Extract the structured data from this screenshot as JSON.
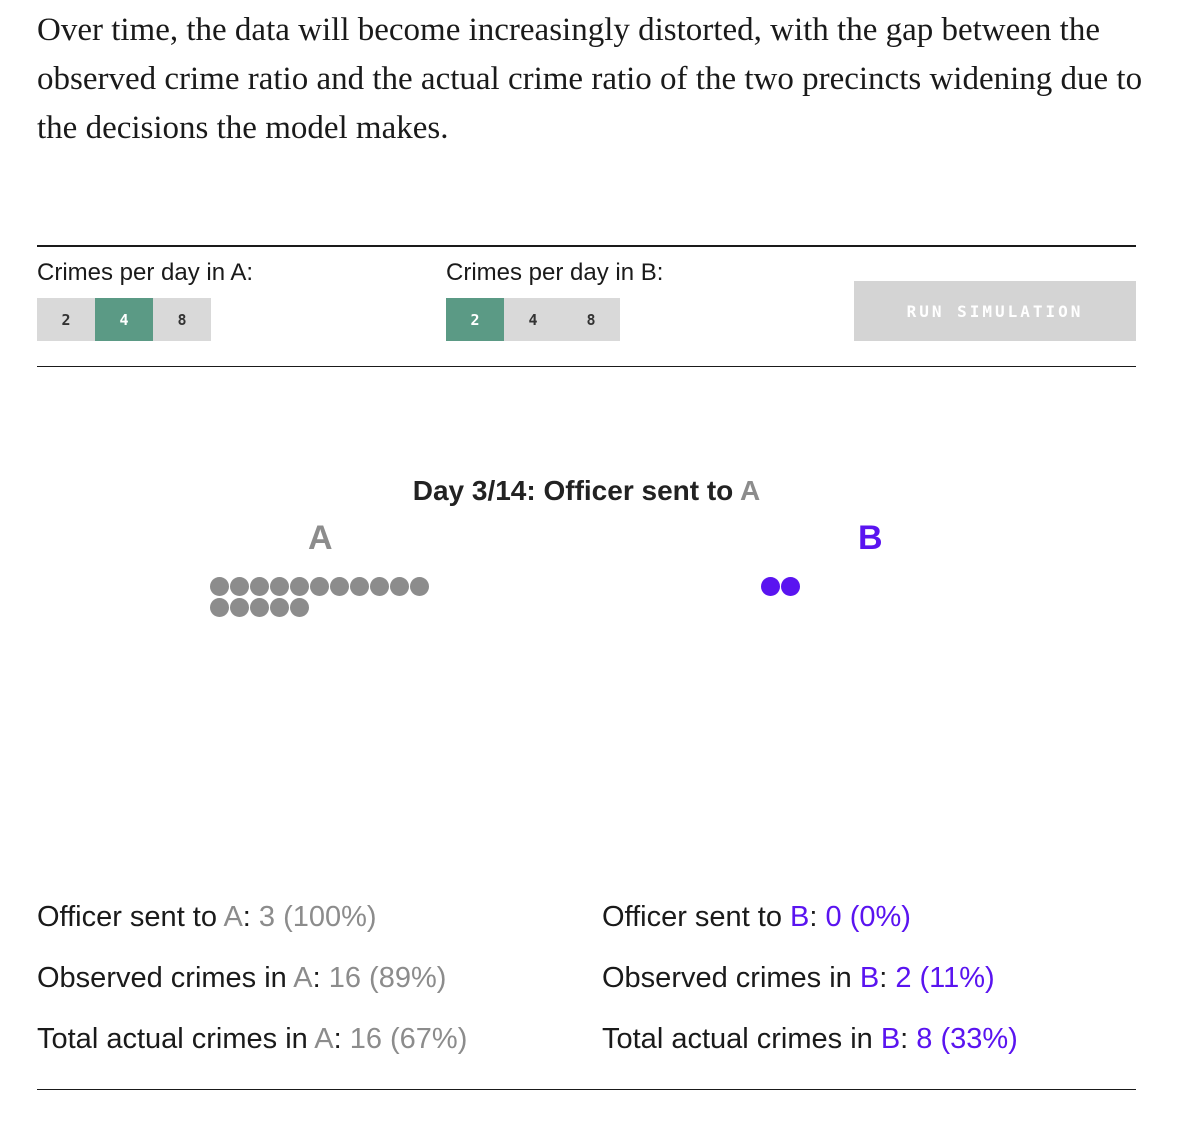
{
  "intro_text": "Over time, the data will become increasingly distorted, with the gap between the observed crime ratio and the actual crime ratio of the two precincts widening due to the decisions the model makes.",
  "controls": {
    "a": {
      "label": "Crimes per day in A:",
      "options": [
        "2",
        "4",
        "8"
      ],
      "selected": "4"
    },
    "b": {
      "label": "Crimes per day in B:",
      "options": [
        "2",
        "4",
        "8"
      ],
      "selected": "2"
    },
    "run_label": "RUN SIMULATION"
  },
  "day": {
    "prefix": "Day 3/14: Officer sent to ",
    "precinct": "A"
  },
  "precincts": {
    "a": {
      "name": "A",
      "observed_dot_count": 16
    },
    "b": {
      "name": "B",
      "observed_dot_count": 2
    }
  },
  "stats": {
    "a": {
      "officer_label": "Officer sent to ",
      "officer_value": "3 (100%)",
      "observed_label": "Observed crimes in ",
      "observed_value": "16 (89%)",
      "total_label": "Total actual crimes in ",
      "total_value": "16 (67%)"
    },
    "b": {
      "officer_label": "Officer sent to ",
      "officer_value": "0 (0%)",
      "observed_label": "Observed crimes in ",
      "observed_value": "2 (11%)",
      "total_label": "Total actual crimes in ",
      "total_value": "8 (33%)"
    }
  },
  "colors": {
    "precinct_a": "#8c8c8c",
    "precinct_b": "#5a14f0",
    "selected_option": "#5b9a85",
    "option_bg": "#d9d9d9",
    "run_button_bg": "#d4d4d4"
  }
}
